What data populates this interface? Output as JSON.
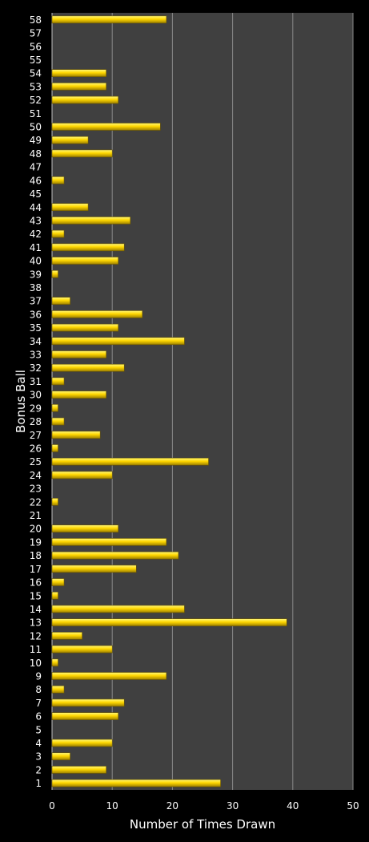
{
  "colors": {
    "background": "#000000",
    "plot_area": "#404040",
    "grid": "#8a8a8a",
    "bar_light": "#fff87a",
    "bar_mid": "#ffd700",
    "bar_dark": "#9c7f00",
    "text": "#ffffff"
  },
  "chart_data": {
    "type": "bar",
    "orientation": "horizontal",
    "title": "",
    "xlabel": "Number of Times Drawn",
    "ylabel": "Bonus Ball",
    "xlim": [
      0,
      50
    ],
    "x_ticks": [
      0,
      10,
      20,
      30,
      40,
      50
    ],
    "grid": "vertical",
    "legend": "none",
    "categories": [
      "1",
      "2",
      "3",
      "4",
      "5",
      "6",
      "7",
      "8",
      "9",
      "10",
      "11",
      "12",
      "13",
      "14",
      "15",
      "16",
      "17",
      "18",
      "19",
      "20",
      "21",
      "22",
      "23",
      "24",
      "25",
      "26",
      "27",
      "28",
      "29",
      "30",
      "31",
      "32",
      "33",
      "34",
      "35",
      "36",
      "37",
      "38",
      "39",
      "40",
      "41",
      "42",
      "43",
      "44",
      "45",
      "46",
      "47",
      "48",
      "49",
      "50",
      "51",
      "52",
      "53",
      "54",
      "55",
      "56",
      "57",
      "58"
    ],
    "values": [
      28,
      9,
      3,
      10,
      0,
      11,
      12,
      2,
      19,
      1,
      10,
      5,
      39,
      22,
      1,
      2,
      14,
      21,
      19,
      11,
      0,
      1,
      0,
      10,
      26,
      1,
      8,
      2,
      1,
      9,
      2,
      12,
      9,
      22,
      11,
      15,
      3,
      0,
      1,
      11,
      12,
      2,
      13,
      6,
      0,
      2,
      0,
      10,
      6,
      18,
      0,
      11,
      9,
      9,
      0,
      0,
      0,
      19
    ]
  }
}
